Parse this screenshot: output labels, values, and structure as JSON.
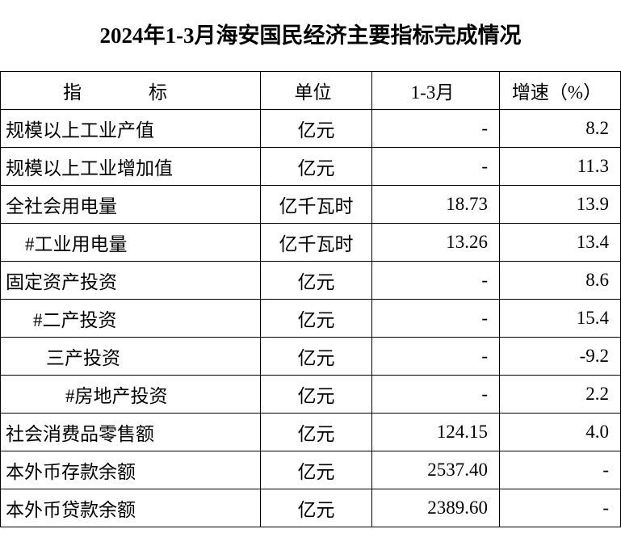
{
  "header": {
    "title": "2024年1-3月海安国民经济主要指标完成情况"
  },
  "table": {
    "columns": [
      "指　标",
      "单位",
      "1-3月",
      "增速（%）"
    ],
    "rows": [
      [
        "规模以上工业产值",
        "亿元",
        "-",
        "8.2"
      ],
      [
        "规模以上工业增加值",
        "亿元",
        "-",
        "11.3"
      ],
      [
        "全社会用电量",
        "亿千瓦时",
        "18.73",
        "13.9"
      ],
      [
        "#工业用电量",
        "亿千瓦时",
        "13.26",
        "13.4"
      ],
      [
        "固定资产投资",
        "亿元",
        "-",
        "8.6"
      ],
      [
        "#二产投资",
        "亿元",
        "-",
        "15.4"
      ],
      [
        "三产投资",
        "亿元",
        "-",
        "-9.2"
      ],
      [
        "#房地产投资",
        "亿元",
        "-",
        "2.2"
      ],
      [
        "社会消费品零售额",
        "亿元",
        "124.15",
        "4.0"
      ],
      [
        "本外币存款余额",
        "亿元",
        "2537.40",
        "-"
      ],
      [
        "本外币贷款余额",
        "亿元",
        "2389.60",
        "-"
      ]
    ]
  }
}
